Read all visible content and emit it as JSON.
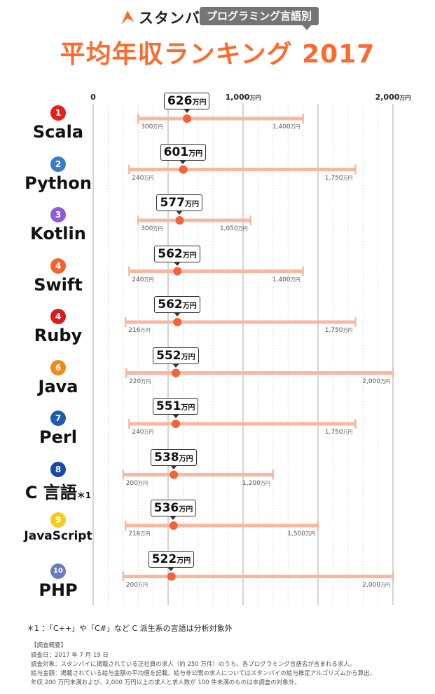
{
  "brand": {
    "name": "スタンバイ",
    "tag": "プログラミング言語別"
  },
  "title": "平均年収ランキング 2017",
  "colors": {
    "accent": "#ff6a2c",
    "bar": "#f7b8a2",
    "dot": "#f4623a",
    "grid": "#bbbbbb"
  },
  "unit": "万円",
  "chart_data": {
    "type": "range",
    "title": "平均年収ランキング 2017",
    "xlim": [
      0,
      2000
    ],
    "xticks": [
      {
        "value": 0,
        "label": "0",
        "unit": ""
      },
      {
        "value": 1000,
        "label": "1,000",
        "unit": "万円"
      },
      {
        "value": 2000,
        "label": "2,000",
        "unit": "万円"
      }
    ],
    "grid": true,
    "series": [
      {
        "rank": "1",
        "lang": "Scala",
        "avg": 626,
        "min": 300,
        "max": 1400,
        "avg_label": "626",
        "min_label": "300",
        "max_label": "1,400",
        "color": "#e8201c"
      },
      {
        "rank": "2",
        "lang": "Python",
        "avg": 601,
        "min": 240,
        "max": 1750,
        "avg_label": "601",
        "min_label": "240",
        "max_label": "1,750",
        "color": "#3a7bc8"
      },
      {
        "rank": "3",
        "lang": "Kotlin",
        "avg": 577,
        "min": 300,
        "max": 1050,
        "avg_label": "577",
        "min_label": "300",
        "max_label": "1,050",
        "color": "#8e5bd6"
      },
      {
        "rank": "4",
        "lang": "Swift",
        "avg": 562,
        "min": 240,
        "max": 1400,
        "avg_label": "562",
        "min_label": "240",
        "max_label": "1,400",
        "color": "#f5632a"
      },
      {
        "rank": "4",
        "lang": "Ruby",
        "avg": 562,
        "min": 216,
        "max": 1750,
        "avg_label": "562",
        "min_label": "216",
        "max_label": "1,750",
        "color": "#d81c1c"
      },
      {
        "rank": "6",
        "lang": "Java",
        "avg": 552,
        "min": 220,
        "max": 2000,
        "avg_label": "552",
        "min_label": "220",
        "max_label": "2,000",
        "color": "#f08a1c"
      },
      {
        "rank": "7",
        "lang": "Perl",
        "avg": 551,
        "min": 240,
        "max": 1750,
        "avg_label": "551",
        "min_label": "240",
        "max_label": "1,750",
        "color": "#1f5bb0"
      },
      {
        "rank": "8",
        "lang": "C 言語",
        "note": "＊1",
        "avg": 538,
        "min": 200,
        "max": 1200,
        "avg_label": "538",
        "min_label": "200",
        "max_label": "1,200",
        "color": "#1c4aa0"
      },
      {
        "rank": "9",
        "lang": "JavaScript",
        "avg": 536,
        "min": 216,
        "max": 1500,
        "avg_label": "536",
        "min_label": "216",
        "max_label": "1,500",
        "color": "#f5cc1c"
      },
      {
        "rank": "10",
        "lang": "PHP",
        "avg": 522,
        "min": 200,
        "max": 2000,
        "avg_label": "522",
        "min_label": "200",
        "max_label": "2,000",
        "color": "#6b7bbd"
      }
    ]
  },
  "footnote": "＊1 ：「C++」や「C#」など C 派生系の言語は分析対象外",
  "survey": {
    "heading": "【調査概要】",
    "lines": [
      "調査日：2017 年 7 月 19 日",
      "調査対象：スタンバイに掲載されている正社員の求人（約 250 万件）のうち、各プログラミング言語名が含まれる求人。",
      "給与金額：掲載されている給与金額の平均値を記載。給与非公開の求人についてはスタンバイの給与推定アルゴリズムから算出。",
      "年収 200 万円未満および、2,000 万円以上の求人と求人数が 100 件未満のものは本調査の対象外。"
    ]
  }
}
